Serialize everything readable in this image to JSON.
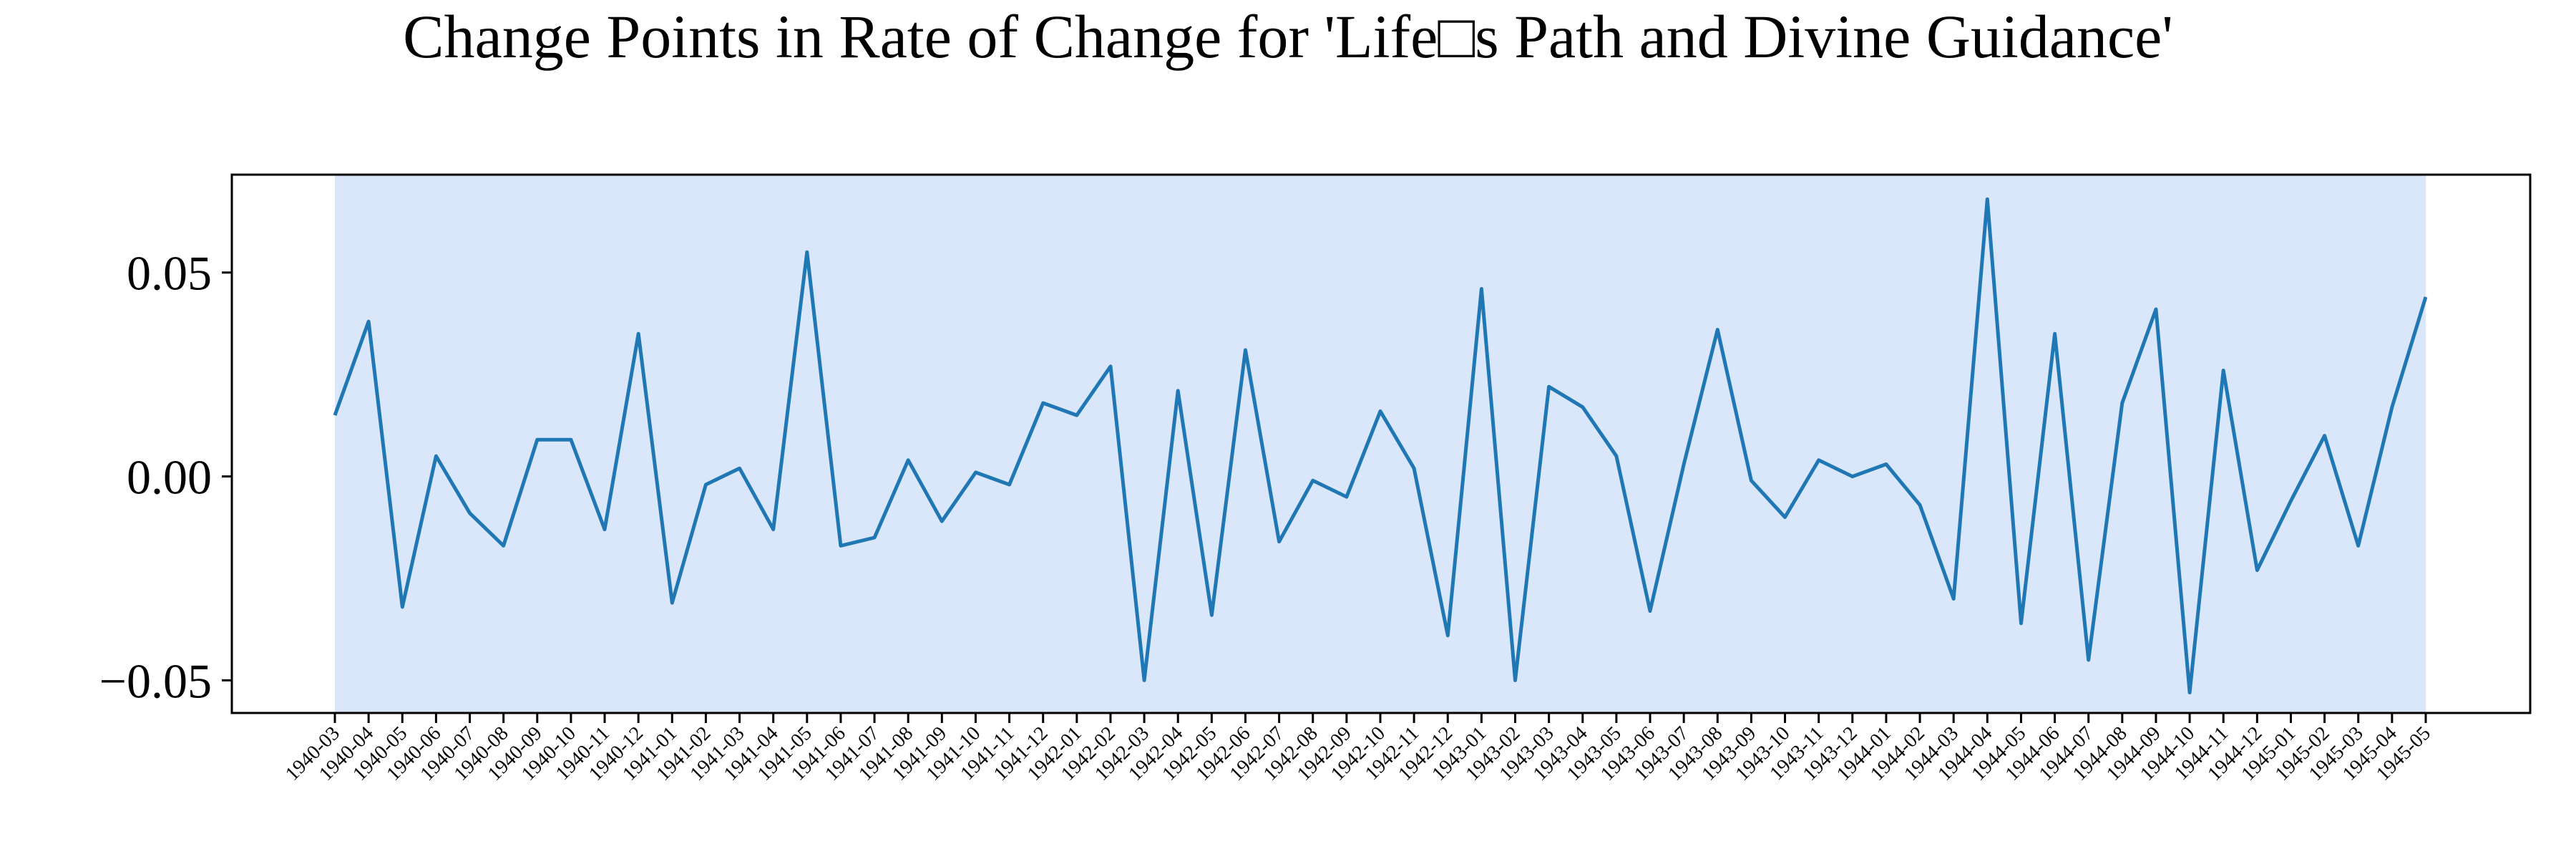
{
  "chart_data": {
    "type": "line",
    "title": "Change Points in Rate of Change for 'Life□s Path and Divine Guidance'",
    "xlabel": "",
    "ylabel": "",
    "ylim": [
      -0.058,
      0.074
    ],
    "yticks": [
      -0.05,
      0.0,
      0.05
    ],
    "ytick_labels": [
      "−0.05",
      "0.00",
      "0.05"
    ],
    "shaded_region": {
      "from": "1940-03",
      "to": "1945-05",
      "color": "#dae6fa"
    },
    "line_color": "#1f77b4",
    "grid": false,
    "categories": [
      "1940-03",
      "1940-04",
      "1940-05",
      "1940-06",
      "1940-07",
      "1940-08",
      "1940-09",
      "1940-10",
      "1940-11",
      "1940-12",
      "1941-01",
      "1941-02",
      "1941-03",
      "1941-04",
      "1941-05",
      "1941-06",
      "1941-07",
      "1941-08",
      "1941-09",
      "1941-10",
      "1941-11",
      "1941-12",
      "1942-01",
      "1942-02",
      "1942-03",
      "1942-04",
      "1942-05",
      "1942-06",
      "1942-07",
      "1942-08",
      "1942-09",
      "1942-10",
      "1942-11",
      "1942-12",
      "1943-01",
      "1943-02",
      "1943-03",
      "1943-04",
      "1943-05",
      "1943-06",
      "1943-07",
      "1943-08",
      "1943-09",
      "1943-10",
      "1943-11",
      "1943-12",
      "1944-01",
      "1944-02",
      "1944-03",
      "1944-04",
      "1944-05",
      "1944-06",
      "1944-07",
      "1944-08",
      "1944-09",
      "1944-10",
      "1944-11",
      "1944-12",
      "1945-01",
      "1945-02",
      "1945-03",
      "1945-04",
      "1945-05"
    ],
    "values": [
      0.015,
      0.038,
      -0.032,
      0.005,
      -0.009,
      -0.017,
      0.009,
      0.009,
      -0.013,
      0.035,
      -0.031,
      -0.002,
      0.002,
      -0.013,
      0.055,
      -0.017,
      -0.015,
      0.004,
      -0.011,
      0.001,
      -0.002,
      0.018,
      0.015,
      0.027,
      -0.05,
      0.021,
      -0.034,
      0.031,
      -0.016,
      -0.001,
      -0.005,
      0.016,
      0.002,
      -0.039,
      0.046,
      -0.05,
      0.022,
      0.017,
      0.005,
      -0.033,
      0.003,
      0.036,
      -0.001,
      -0.01,
      0.004,
      0.0,
      0.003,
      -0.007,
      -0.03,
      0.068,
      -0.036,
      0.035,
      -0.045,
      0.018,
      0.041,
      -0.053,
      0.026,
      -0.023,
      -0.006,
      0.01,
      -0.017,
      0.017,
      0.044
    ]
  }
}
